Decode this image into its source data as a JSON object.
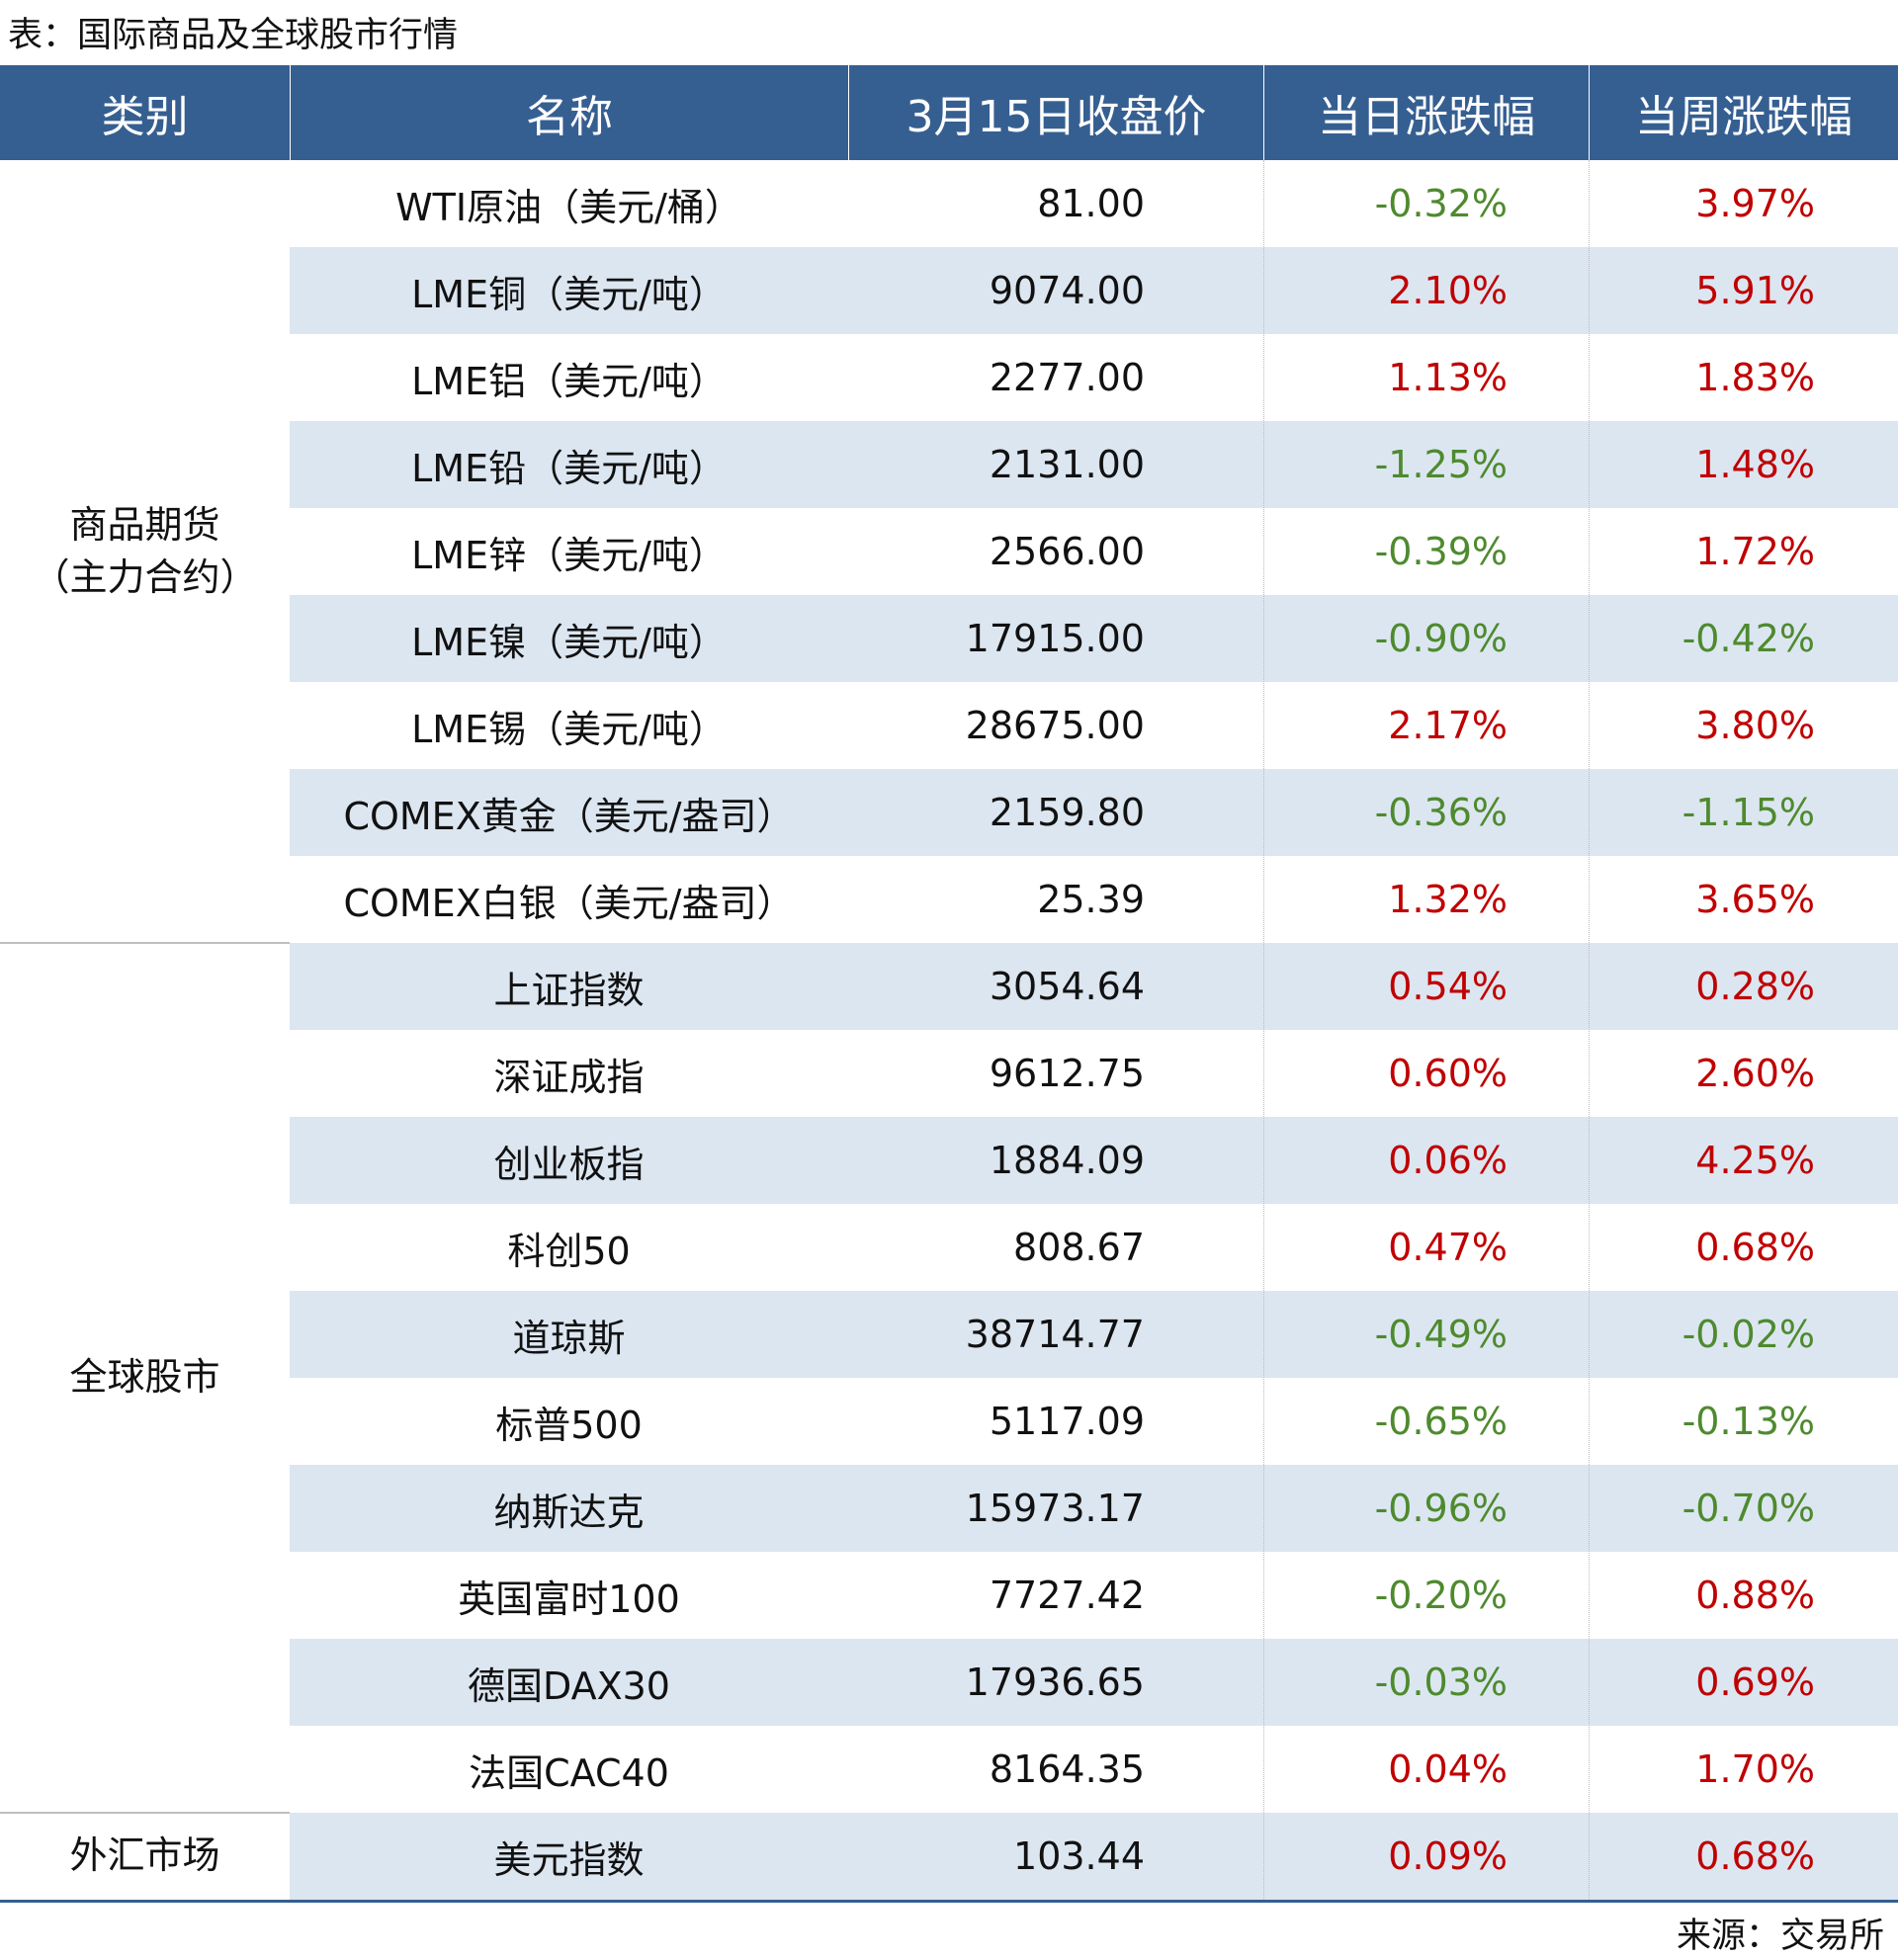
{
  "header": {
    "title": "表：国际商品及全球股市行情"
  },
  "table": {
    "columns": [
      "类别",
      "名称",
      "3月15日收盘价",
      "当日涨跌幅",
      "当周涨跌幅"
    ],
    "up_color": "#c00000",
    "down_color": "#4e8a2e",
    "groups": [
      {
        "category": "商品期货\n（主力合约）",
        "rows": [
          [
            "WTI原油（美元/桶）",
            "81.00",
            "-0.32%",
            "3.97%"
          ],
          [
            "LME铜（美元/吨）",
            "9074.00",
            "2.10%",
            "5.91%"
          ],
          [
            "LME铝（美元/吨）",
            "2277.00",
            "1.13%",
            "1.83%"
          ],
          [
            "LME铅（美元/吨）",
            "2131.00",
            "-1.25%",
            "1.48%"
          ],
          [
            "LME锌（美元/吨）",
            "2566.00",
            "-0.39%",
            "1.72%"
          ],
          [
            "LME镍（美元/吨）",
            "17915.00",
            "-0.90%",
            "-0.42%"
          ],
          [
            "LME锡（美元/吨）",
            "28675.00",
            "2.17%",
            "3.80%"
          ],
          [
            "COMEX黄金（美元/盎司）",
            "2159.80",
            "-0.36%",
            "-1.15%"
          ],
          [
            "COMEX白银（美元/盎司）",
            "25.39",
            "1.32%",
            "3.65%"
          ]
        ]
      },
      {
        "category": "全球股市",
        "rows": [
          [
            "上证指数",
            "3054.64",
            "0.54%",
            "0.28%"
          ],
          [
            "深证成指",
            "9612.75",
            "0.60%",
            "2.60%"
          ],
          [
            "创业板指",
            "1884.09",
            "0.06%",
            "4.25%"
          ],
          [
            "科创50",
            "808.67",
            "0.47%",
            "0.68%"
          ],
          [
            "道琼斯",
            "38714.77",
            "-0.49%",
            "-0.02%"
          ],
          [
            "标普500",
            "5117.09",
            "-0.65%",
            "-0.13%"
          ],
          [
            "纳斯达克",
            "15973.17",
            "-0.96%",
            "-0.70%"
          ],
          [
            "英国富时100",
            "7727.42",
            "-0.20%",
            "0.88%"
          ],
          [
            "德国DAX30",
            "17936.65",
            "-0.03%",
            "0.69%"
          ],
          [
            "法国CAC40",
            "8164.35",
            "0.04%",
            "1.70%"
          ]
        ]
      },
      {
        "category": "外汇市场",
        "rows": [
          [
            "美元指数",
            "103.44",
            "0.09%",
            "0.68%"
          ]
        ]
      }
    ]
  },
  "footer": {
    "source": "来源：交易所"
  }
}
